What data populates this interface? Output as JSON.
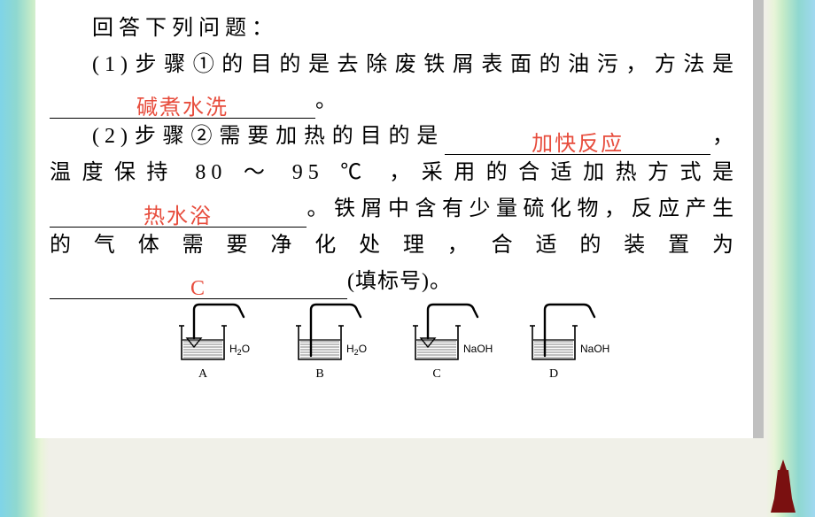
{
  "text": {
    "intro": "回答下列问题：",
    "q1_prefix": "(1)步骤①的目的是去除废铁屑表面的油污，方法是",
    "q1_answer": "碱煮水洗",
    "q1_suffix": "。",
    "q2a_prefix": "(2)步骤②需要加热的目的是",
    "q2a_answer": "加快反应",
    "q2a_suffix": "，温度保持 80 ～ 95 ℃ ，采用的合适加热方式是",
    "q2b_answer": "热水浴",
    "q2b_suffix": "。铁屑中含有少量硫化物，反应产生的气体需要净化处理，合适的装置为",
    "q2c_answer": "C",
    "q2c_suffix": "(填标号)。"
  },
  "diagrams": {
    "items": [
      {
        "label": "A",
        "reagent": "H₂O",
        "tube_long": false
      },
      {
        "label": "B",
        "reagent": "H₂O",
        "tube_long": true
      },
      {
        "label": "C",
        "reagent": "NaOH",
        "tube_long": false
      },
      {
        "label": "D",
        "reagent": "NaOH",
        "tube_long": true
      }
    ]
  },
  "style": {
    "answer_color": "#e74c3c",
    "text_color": "#000000",
    "bg_white": "#ffffff",
    "shadow": "#c0c0c0",
    "blank1_width": 300,
    "blank2_width": 300,
    "blank3_width": 290,
    "blank4_width": 336,
    "diagram_width": 100,
    "diagram_height": 88,
    "body_fontsize": 24
  }
}
